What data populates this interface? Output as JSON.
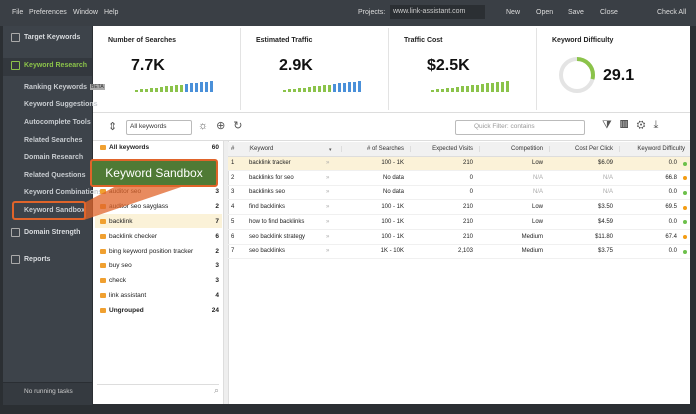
{
  "menu": [
    "File",
    "Preferences",
    "Window",
    "Help"
  ],
  "projects": {
    "label": "Projects:",
    "value": "www.link-assistant.com"
  },
  "toolbar_buttons": [
    "New",
    "Open",
    "Save",
    "Close",
    "Check All"
  ],
  "sidebar": {
    "items": [
      {
        "label": "Target Keywords",
        "level": 0
      },
      {
        "label": "Keyword Research",
        "level": 0,
        "active": true
      },
      {
        "label": "Ranking Keywords",
        "level": 1,
        "badge": "BETA"
      },
      {
        "label": "Keyword Suggestions",
        "level": 1
      },
      {
        "label": "Autocomplete Tools",
        "level": 1
      },
      {
        "label": "Related Searches",
        "level": 1
      },
      {
        "label": "Domain Research",
        "level": 1
      },
      {
        "label": "Related Questions",
        "level": 1
      },
      {
        "label": "Keyword Combinations",
        "level": 1
      },
      {
        "label": "Keyword Sandbox",
        "level": 1,
        "selected": true
      },
      {
        "label": "Domain Strength",
        "level": 0
      },
      {
        "label": "Reports",
        "level": 0
      }
    ],
    "status": "No running tasks"
  },
  "stats": [
    {
      "label": "Number of Searches",
      "value": "7.7K"
    },
    {
      "label": "Estimated Traffic",
      "value": "2.9K"
    },
    {
      "label": "Traffic Cost",
      "value": "$2.5K"
    },
    {
      "label": "Keyword Difficulty",
      "value": "29.1"
    }
  ],
  "filter": {
    "dropdown": "All keywords",
    "placeholder": "Quick Filter: contains"
  },
  "groups": [
    {
      "name": "All keywords",
      "count": "60"
    },
    {
      "name": "auditor seo",
      "count": "3"
    },
    {
      "name": "auditor seo sayglass",
      "count": "2"
    },
    {
      "name": "backlink",
      "count": "7"
    },
    {
      "name": "backlink checker",
      "count": "6"
    },
    {
      "name": "bing keyword position tracker",
      "count": "2"
    },
    {
      "name": "buy seo",
      "count": "3"
    },
    {
      "name": "check",
      "count": "3"
    },
    {
      "name": "link assistant",
      "count": "4"
    },
    {
      "name": "Ungrouped",
      "count": "24"
    }
  ],
  "table": {
    "columns": [
      "#",
      "Keyword",
      "# of Searches",
      "Expected Visits",
      "Competition",
      "Cost Per Click",
      "Keyword Difficulty"
    ],
    "rows": [
      [
        "1",
        "backlink tracker",
        "100 - 1K",
        "210",
        "Low",
        "$6.09",
        "0.0"
      ],
      [
        "2",
        "backlinks for seo",
        "No data",
        "0",
        "N/A",
        "N/A",
        "66.8"
      ],
      [
        "3",
        "backlinks seo",
        "No data",
        "0",
        "N/A",
        "N/A",
        "0.0"
      ],
      [
        "4",
        "find backlinks",
        "100 - 1K",
        "210",
        "Low",
        "$3.50",
        "69.5"
      ],
      [
        "5",
        "how to find backlinks",
        "100 - 1K",
        "210",
        "Low",
        "$4.59",
        "0.0"
      ],
      [
        "6",
        "seo backlink strategy",
        "100 - 1K",
        "210",
        "Medium",
        "$11.80",
        "67.4"
      ],
      [
        "7",
        "seo backlinks",
        "1K - 10K",
        "2,103",
        "Medium",
        "$3.75",
        "0.0"
      ]
    ]
  },
  "callout": "Keyword Sandbox"
}
